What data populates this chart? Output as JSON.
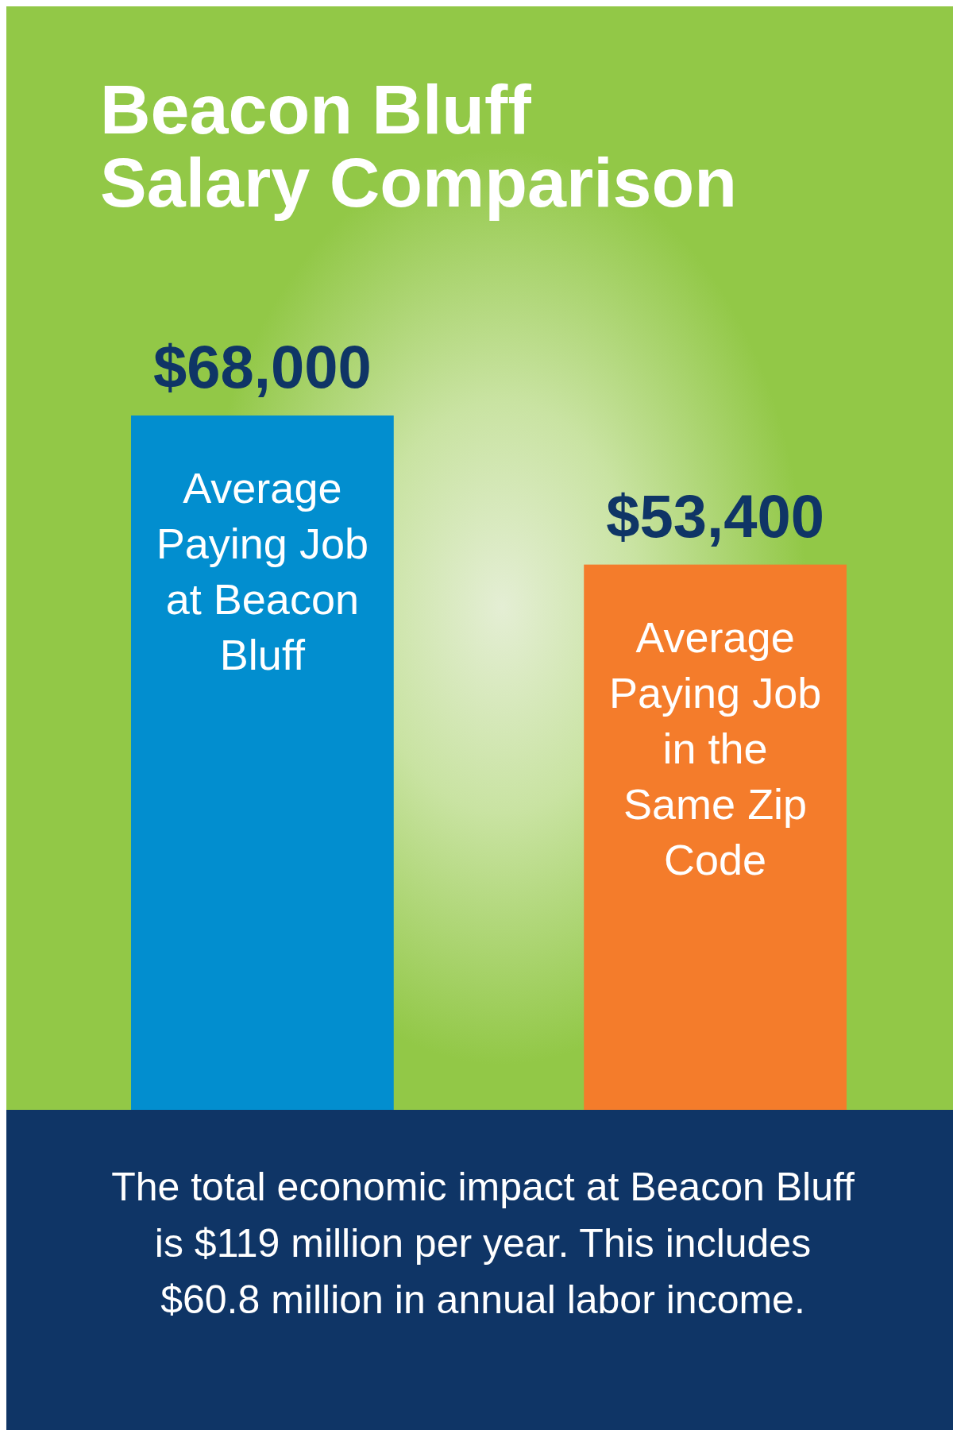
{
  "chart_data": {
    "type": "bar",
    "title": "Beacon Bluff Salary Comparison",
    "categories": [
      "Average Paying Job at Beacon Bluff",
      "Average Paying Job in the Same Zip Code"
    ],
    "values": [
      68000,
      53400
    ],
    "colors": [
      "#028ecf",
      "#f47c2b"
    ],
    "ylim": [
      0,
      68000
    ],
    "value_labels": [
      "$68,000",
      "$53,400"
    ],
    "annotations": [
      "The total economic impact at Beacon Bluff is $119 million per year. This includes $60.8 million in annual labor income."
    ]
  }
}
